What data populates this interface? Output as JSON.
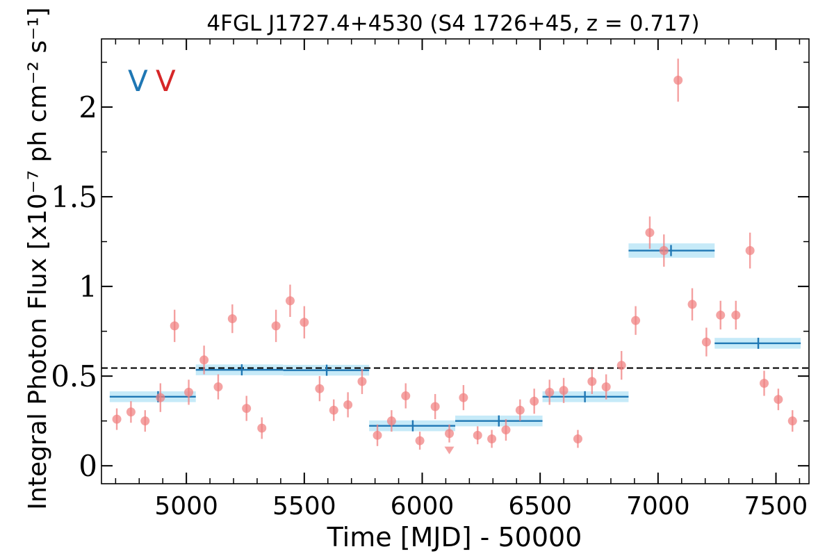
{
  "chart_data": {
    "type": "scatter",
    "title": "4FGL J1727.4+4530 (S4 1726+45, z = 0.717)",
    "xlabel": "Time [MJD] - 50000",
    "ylabel": "Integral Photon Flux [x10⁻⁷ ph cm⁻² s⁻¹]",
    "xlim": [
      4640,
      7640
    ],
    "ylim": [
      -0.1,
      2.38
    ],
    "xticks": [
      5000,
      5500,
      6000,
      6500,
      7000,
      7500
    ],
    "xtick_labels": [
      "5000",
      "5500",
      "6000",
      "6500",
      "7000",
      "7500"
    ],
    "yticks": [
      0,
      0.5,
      1,
      1.5,
      2
    ],
    "ytick_labels": [
      "0",
      "0.5",
      "1",
      "1.5",
      "2"
    ],
    "grid": false,
    "variability_flags": [
      {
        "label": "V",
        "color": "#1f77b4"
      },
      {
        "label": "V",
        "color": "#d62728"
      }
    ],
    "mean_flux": 0.545,
    "series": [
      {
        "type": "points",
        "color": "#f08080",
        "points": [
          {
            "x": 4705,
            "y": 0.26,
            "err": 0.06
          },
          {
            "x": 4765,
            "y": 0.3,
            "err": 0.06
          },
          {
            "x": 4825,
            "y": 0.25,
            "err": 0.06
          },
          {
            "x": 4890,
            "y": 0.38,
            "err": 0.08
          },
          {
            "x": 4950,
            "y": 0.78,
            "err": 0.09
          },
          {
            "x": 5010,
            "y": 0.41,
            "err": 0.07
          },
          {
            "x": 5075,
            "y": 0.59,
            "err": 0.08
          },
          {
            "x": 5135,
            "y": 0.44,
            "err": 0.07
          },
          {
            "x": 5195,
            "y": 0.82,
            "err": 0.08
          },
          {
            "x": 5255,
            "y": 0.32,
            "err": 0.07
          },
          {
            "x": 5320,
            "y": 0.21,
            "err": 0.06
          },
          {
            "x": 5380,
            "y": 0.78,
            "err": 0.09
          },
          {
            "x": 5440,
            "y": 0.92,
            "err": 0.09
          },
          {
            "x": 5500,
            "y": 0.8,
            "err": 0.09
          },
          {
            "x": 5565,
            "y": 0.43,
            "err": 0.07
          },
          {
            "x": 5625,
            "y": 0.31,
            "err": 0.06
          },
          {
            "x": 5685,
            "y": 0.34,
            "err": 0.07
          },
          {
            "x": 5745,
            "y": 0.47,
            "err": 0.07
          },
          {
            "x": 5810,
            "y": 0.17,
            "err": 0.06
          },
          {
            "x": 5870,
            "y": 0.25,
            "err": 0.06
          },
          {
            "x": 5930,
            "y": 0.39,
            "err": 0.07
          },
          {
            "x": 5990,
            "y": 0.14,
            "err": 0.05
          },
          {
            "x": 6055,
            "y": 0.33,
            "err": 0.07
          },
          {
            "x": 6115,
            "y": 0.18,
            "err": 0.05,
            "upper_limit": true
          },
          {
            "x": 6175,
            "y": 0.38,
            "err": 0.07
          },
          {
            "x": 6235,
            "y": 0.17,
            "err": 0.05
          },
          {
            "x": 6295,
            "y": 0.15,
            "err": 0.05
          },
          {
            "x": 6355,
            "y": 0.2,
            "err": 0.06
          },
          {
            "x": 6415,
            "y": 0.31,
            "err": 0.06
          },
          {
            "x": 6475,
            "y": 0.36,
            "err": 0.07
          },
          {
            "x": 6540,
            "y": 0.41,
            "err": 0.07
          },
          {
            "x": 6600,
            "y": 0.42,
            "err": 0.07
          },
          {
            "x": 6660,
            "y": 0.15,
            "err": 0.05
          },
          {
            "x": 6720,
            "y": 0.47,
            "err": 0.07
          },
          {
            "x": 6780,
            "y": 0.44,
            "err": 0.07
          },
          {
            "x": 6845,
            "y": 0.56,
            "err": 0.08
          },
          {
            "x": 6905,
            "y": 0.81,
            "err": 0.08
          },
          {
            "x": 6965,
            "y": 1.3,
            "err": 0.09
          },
          {
            "x": 7025,
            "y": 1.2,
            "err": 0.09
          },
          {
            "x": 7085,
            "y": 2.15,
            "err": 0.12
          },
          {
            "x": 7145,
            "y": 0.9,
            "err": 0.09
          },
          {
            "x": 7205,
            "y": 0.69,
            "err": 0.08
          },
          {
            "x": 7265,
            "y": 0.84,
            "err": 0.08
          },
          {
            "x": 7330,
            "y": 0.84,
            "err": 0.08
          },
          {
            "x": 7390,
            "y": 1.2,
            "err": 0.1
          },
          {
            "x": 7450,
            "y": 0.46,
            "err": 0.07
          },
          {
            "x": 7510,
            "y": 0.37,
            "err": 0.06
          },
          {
            "x": 7570,
            "y": 0.25,
            "err": 0.06
          }
        ]
      },
      {
        "type": "bins",
        "color": "#1f77b4",
        "band_color": "#c6eaf8",
        "bins": [
          {
            "x0": 4675,
            "x1": 5040,
            "xc": 4880,
            "y": 0.385,
            "err": 0.03
          },
          {
            "x0": 5040,
            "x1": 5410,
            "xc": 5235,
            "y": 0.535,
            "err": 0.03
          },
          {
            "x0": 5410,
            "x1": 5775,
            "xc": 5595,
            "y": 0.533,
            "err": 0.03
          },
          {
            "x0": 5775,
            "x1": 6140,
            "xc": 5960,
            "y": 0.223,
            "err": 0.03
          },
          {
            "x0": 6140,
            "x1": 6510,
            "xc": 6325,
            "y": 0.25,
            "err": 0.03
          },
          {
            "x0": 6510,
            "x1": 6875,
            "xc": 6690,
            "y": 0.385,
            "err": 0.03
          },
          {
            "x0": 6875,
            "x1": 7240,
            "xc": 7055,
            "y": 1.2,
            "err": 0.04
          },
          {
            "x0": 7240,
            "x1": 7605,
            "xc": 7425,
            "y": 0.683,
            "err": 0.03
          }
        ]
      }
    ]
  }
}
